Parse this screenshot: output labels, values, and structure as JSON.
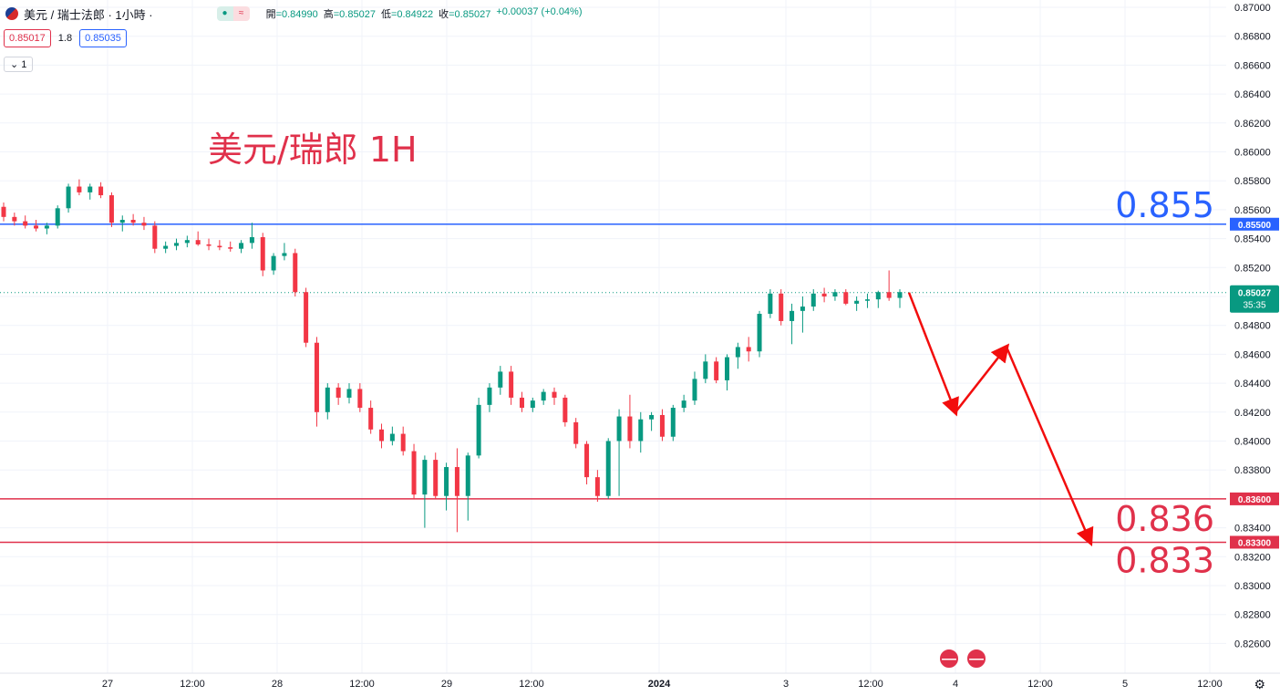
{
  "header": {
    "symbol": "美元 / 瑞士法郎 · 1小時 ·",
    "pill_icon_left": "dot-icon",
    "pill_icon_right": "approx-icon",
    "ohlc": {
      "open_label": "開",
      "open": "=0.84990",
      "high_label": "高",
      "high": "=0.85027",
      "low_label": "低",
      "low": "=0.84922",
      "close_label": "收",
      "close": "=0.85027",
      "change": "+0.00037 (+0.04%)"
    },
    "bid": "0.85017",
    "spread": "1.8",
    "ask": "0.85035",
    "indicator_count": "1",
    "collapse_icon": "chevron-down-icon"
  },
  "colors": {
    "up": "#089981",
    "down": "#f23645",
    "blue_line": "#2962ff",
    "red_line": "#e0314b",
    "arrow": "#f20d0d",
    "grid": "#f0f3fa"
  },
  "chart_data": {
    "type": "candlestick",
    "title": "美元/瑞郎 1H",
    "y_axis": {
      "min": 0.825,
      "max": 0.871,
      "ticks": [
        "0.87000",
        "0.86800",
        "0.86600",
        "0.86400",
        "0.86200",
        "0.86000",
        "0.85800",
        "0.85600",
        "0.85400",
        "0.85200",
        "0.85000",
        "0.84800",
        "0.84600",
        "0.84400",
        "0.84200",
        "0.84000",
        "0.83800",
        "0.83600",
        "0.83400",
        "0.83200",
        "0.83000",
        "0.82800",
        "0.82600"
      ]
    },
    "x_axis": {
      "ticks": [
        "27",
        "12:00",
        "28",
        "12:00",
        "29",
        "12:00",
        "2024",
        "3",
        "12:00",
        "4",
        "12:00",
        "5",
        "12:00"
      ]
    },
    "current_price": {
      "value": "0.85027",
      "countdown": "35:35"
    },
    "levels": [
      {
        "value": 0.855,
        "label": "0.85500",
        "annotation": "0.855",
        "color": "#2962ff"
      },
      {
        "value": 0.836,
        "label": "0.83600",
        "annotation": "0.836",
        "color": "#e0314b"
      },
      {
        "value": 0.833,
        "label": "0.83300",
        "annotation": "0.833",
        "color": "#e0314b"
      }
    ],
    "candles_approx": [
      [
        0.8562,
        0.8565,
        0.8552,
        0.8555
      ],
      [
        0.8555,
        0.8558,
        0.8549,
        0.8552
      ],
      [
        0.8552,
        0.8556,
        0.8547,
        0.8549
      ],
      [
        0.8549,
        0.8553,
        0.8545,
        0.8547
      ],
      [
        0.8547,
        0.8551,
        0.8543,
        0.8549
      ],
      [
        0.8549,
        0.8563,
        0.8547,
        0.8561
      ],
      [
        0.8561,
        0.8578,
        0.8558,
        0.8576
      ],
      [
        0.8576,
        0.8581,
        0.857,
        0.8572
      ],
      [
        0.8572,
        0.8578,
        0.8567,
        0.8576
      ],
      [
        0.8576,
        0.8579,
        0.8568,
        0.857
      ],
      [
        0.857,
        0.8572,
        0.8548,
        0.8551
      ],
      [
        0.8551,
        0.8556,
        0.8545,
        0.8553
      ],
      [
        0.8553,
        0.8557,
        0.8549,
        0.8551
      ],
      [
        0.8551,
        0.8555,
        0.8546,
        0.8549
      ],
      [
        0.8549,
        0.8552,
        0.853,
        0.8533
      ],
      [
        0.8533,
        0.8538,
        0.853,
        0.8535
      ],
      [
        0.8535,
        0.854,
        0.8532,
        0.8537
      ],
      [
        0.8537,
        0.8542,
        0.8534,
        0.8539
      ],
      [
        0.8539,
        0.8545,
        0.8535,
        0.8536
      ],
      [
        0.8536,
        0.854,
        0.8532,
        0.8535
      ],
      [
        0.8535,
        0.8539,
        0.8532,
        0.8534
      ],
      [
        0.8534,
        0.8538,
        0.8531,
        0.8533
      ],
      [
        0.8533,
        0.8539,
        0.853,
        0.8537
      ],
      [
        0.8537,
        0.8551,
        0.8533,
        0.8541
      ],
      [
        0.8541,
        0.8544,
        0.8514,
        0.8518
      ],
      [
        0.8518,
        0.853,
        0.8515,
        0.8528
      ],
      [
        0.8528,
        0.8537,
        0.8525,
        0.853
      ],
      [
        0.853,
        0.8533,
        0.85,
        0.8503
      ],
      [
        0.8503,
        0.8506,
        0.8465,
        0.8468
      ],
      [
        0.8468,
        0.8472,
        0.841,
        0.842
      ],
      [
        0.842,
        0.844,
        0.8415,
        0.8437
      ],
      [
        0.8437,
        0.844,
        0.8425,
        0.843
      ],
      [
        0.843,
        0.844,
        0.8426,
        0.8436
      ],
      [
        0.8436,
        0.844,
        0.842,
        0.8423
      ],
      [
        0.8423,
        0.8428,
        0.8405,
        0.8408
      ],
      [
        0.8408,
        0.8412,
        0.8395,
        0.84
      ],
      [
        0.84,
        0.841,
        0.8397,
        0.8405
      ],
      [
        0.8405,
        0.841,
        0.839,
        0.8393
      ],
      [
        0.8393,
        0.8398,
        0.836,
        0.8363
      ],
      [
        0.8363,
        0.839,
        0.834,
        0.8387
      ],
      [
        0.8387,
        0.8392,
        0.836,
        0.8362
      ],
      [
        0.8362,
        0.8385,
        0.8352,
        0.8382
      ],
      [
        0.8382,
        0.8395,
        0.8337,
        0.8362
      ],
      [
        0.8362,
        0.8392,
        0.8345,
        0.839
      ],
      [
        0.839,
        0.843,
        0.8388,
        0.8425
      ],
      [
        0.8425,
        0.844,
        0.842,
        0.8437
      ],
      [
        0.8437,
        0.8452,
        0.8432,
        0.8448
      ],
      [
        0.8448,
        0.8452,
        0.8425,
        0.843
      ],
      [
        0.843,
        0.8434,
        0.842,
        0.8423
      ],
      [
        0.8423,
        0.843,
        0.842,
        0.8428
      ],
      [
        0.8428,
        0.8436,
        0.8425,
        0.8434
      ],
      [
        0.8434,
        0.8437,
        0.8425,
        0.843
      ],
      [
        0.843,
        0.8432,
        0.841,
        0.8413
      ],
      [
        0.8413,
        0.8416,
        0.8395,
        0.8398
      ],
      [
        0.8398,
        0.84,
        0.837,
        0.8375
      ],
      [
        0.8375,
        0.838,
        0.8358,
        0.8362
      ],
      [
        0.8362,
        0.8402,
        0.836,
        0.84
      ],
      [
        0.84,
        0.8422,
        0.8362,
        0.8417
      ],
      [
        0.8417,
        0.8432,
        0.8395,
        0.84
      ],
      [
        0.84,
        0.842,
        0.8392,
        0.8415
      ],
      [
        0.8415,
        0.842,
        0.8407,
        0.8418
      ],
      [
        0.8418,
        0.8422,
        0.84,
        0.8403
      ],
      [
        0.8403,
        0.8425,
        0.84,
        0.8423
      ],
      [
        0.8423,
        0.8432,
        0.842,
        0.8428
      ],
      [
        0.8428,
        0.8448,
        0.8425,
        0.8443
      ],
      [
        0.8443,
        0.846,
        0.844,
        0.8455
      ],
      [
        0.8455,
        0.8458,
        0.844,
        0.8442
      ],
      [
        0.8442,
        0.846,
        0.8435,
        0.8458
      ],
      [
        0.8458,
        0.8468,
        0.845,
        0.8465
      ],
      [
        0.8465,
        0.8472,
        0.8455,
        0.8462
      ],
      [
        0.8462,
        0.849,
        0.8458,
        0.8488
      ],
      [
        0.8488,
        0.8505,
        0.8485,
        0.8502
      ],
      [
        0.8502,
        0.8505,
        0.848,
        0.8483
      ],
      [
        0.8483,
        0.8495,
        0.8467,
        0.849
      ],
      [
        0.849,
        0.85,
        0.8475,
        0.8493
      ],
      [
        0.8493,
        0.8505,
        0.849,
        0.8502
      ],
      [
        0.8502,
        0.8506,
        0.8496,
        0.85
      ],
      [
        0.85,
        0.8505,
        0.8497,
        0.8503
      ],
      [
        0.8503,
        0.8505,
        0.8494,
        0.8495
      ],
      [
        0.8495,
        0.85,
        0.849,
        0.8497
      ],
      [
        0.8497,
        0.8502,
        0.8492,
        0.8498
      ],
      [
        0.8498,
        0.8504,
        0.8492,
        0.8503
      ],
      [
        0.8503,
        0.8518,
        0.8497,
        0.8499
      ],
      [
        0.8499,
        0.8505,
        0.8492,
        0.8503
      ]
    ],
    "projection": [
      0.85027,
      0.842,
      0.8465,
      0.833
    ]
  }
}
